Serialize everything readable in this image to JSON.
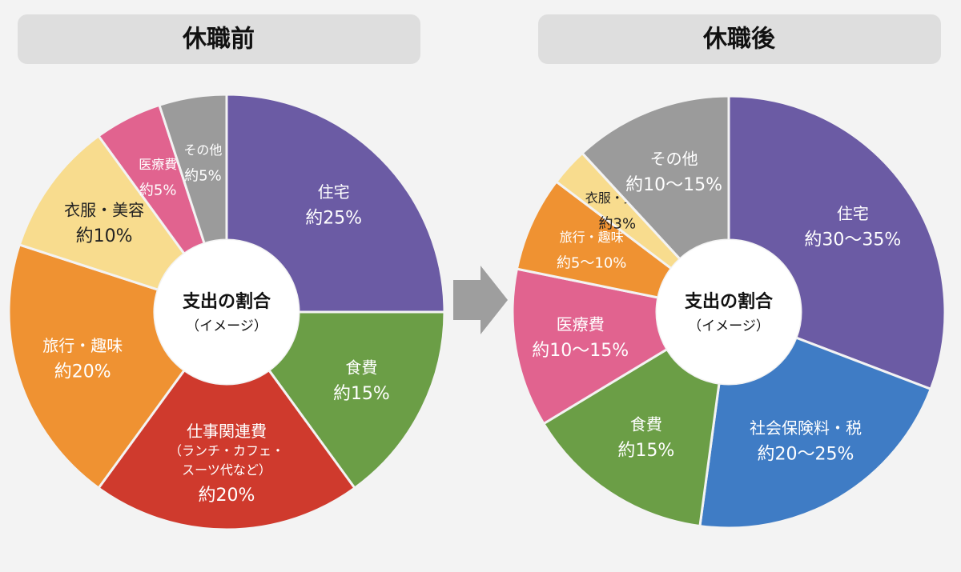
{
  "chart_data": [
    {
      "type": "donut",
      "title": "休職前",
      "center_label": "支出の割合",
      "center_sublabel": "（イメージ）",
      "categories": [
        "住宅",
        "食費",
        "仕事関連費\n（ランチ・カフェ・\nスーツ代など）",
        "旅行・趣味",
        "衣服・美容",
        "医療費",
        "その他"
      ],
      "values": [
        25,
        15,
        20,
        20,
        10,
        5,
        5
      ],
      "value_labels": [
        "約25%",
        "約15%",
        "約20%",
        "約20%",
        "約10%",
        "約5%",
        "約5%"
      ],
      "colors": [
        "#6b5ba4",
        "#6b9e46",
        "#cf3a2d",
        "#ef9232",
        "#f8dc8e",
        "#e1638f",
        "#9b9b9b"
      ]
    },
    {
      "type": "donut",
      "title": "休職後",
      "center_label": "支出の割合",
      "center_sublabel": "（イメージ）",
      "categories": [
        "住宅",
        "社会保険料・税",
        "食費",
        "医療費",
        "旅行・趣味",
        "衣服・美容",
        "その他"
      ],
      "values": [
        32.5,
        22.5,
        15,
        12.5,
        7.5,
        3,
        12.5
      ],
      "value_labels": [
        "約30～35%",
        "約20～25%",
        "約15%",
        "約10～15%",
        "約5～10%",
        "約3%",
        "約10～15%"
      ],
      "colors": [
        "#6b5ba4",
        "#3f7cc5",
        "#6b9e46",
        "#e1638f",
        "#ef9232",
        "#f8dc8e",
        "#9b9b9b"
      ]
    }
  ]
}
